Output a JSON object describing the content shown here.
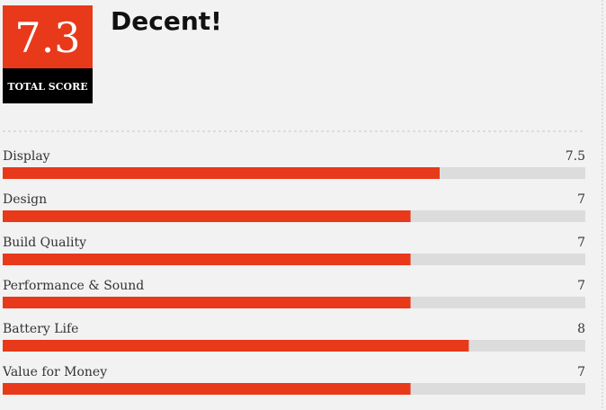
{
  "chart_data": {
    "type": "bar",
    "orientation": "horizontal",
    "title": "Decent!",
    "total_score": 7.3,
    "total_score_label": "TOTAL SCORE",
    "categories": [
      "Display",
      "Design",
      "Build Quality",
      "Performance & Sound",
      "Battery Life",
      "Value for Money"
    ],
    "values": [
      7.5,
      7,
      7,
      7,
      8,
      7
    ],
    "xlim": [
      0,
      10
    ],
    "color": "#e8391a",
    "track_color": "#dcdcdc"
  }
}
